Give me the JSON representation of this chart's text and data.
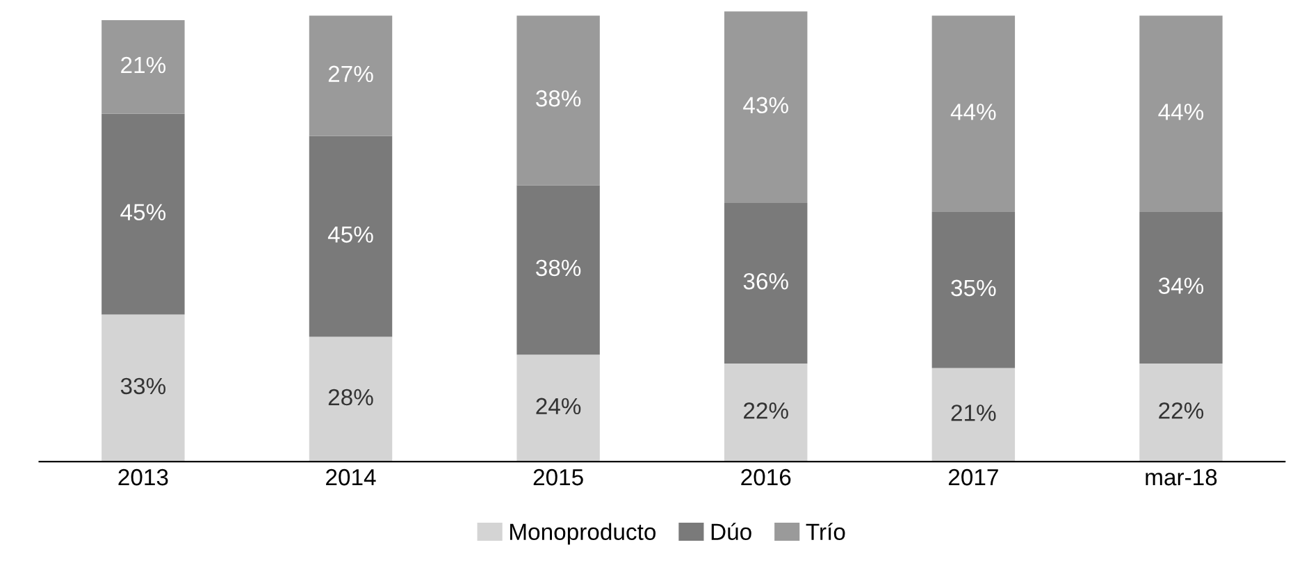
{
  "chart_data": {
    "type": "bar",
    "stacked": true,
    "legend": "bottom",
    "grid": false,
    "categories": [
      "2013",
      "2014",
      "2015",
      "2016",
      "2017",
      "mar-18"
    ],
    "series": [
      {
        "name": "Monoproducto",
        "color": "#d4d4d4",
        "values": [
          33,
          28,
          24,
          22,
          21,
          22
        ],
        "value_labels": [
          "33%",
          "28%",
          "24%",
          "22%",
          "21%",
          "22%"
        ]
      },
      {
        "name": "Dúo",
        "color": "#7a7a7a",
        "values": [
          45,
          45,
          38,
          36,
          35,
          34
        ],
        "value_labels": [
          "45%",
          "45%",
          "38%",
          "36%",
          "35%",
          "34%"
        ]
      },
      {
        "name": "Trío",
        "color": "#9a9a9a",
        "values": [
          21,
          27,
          38,
          43,
          44,
          44
        ],
        "value_labels": [
          "21%",
          "27%",
          "38%",
          "43%",
          "44%",
          "44%"
        ]
      }
    ]
  }
}
